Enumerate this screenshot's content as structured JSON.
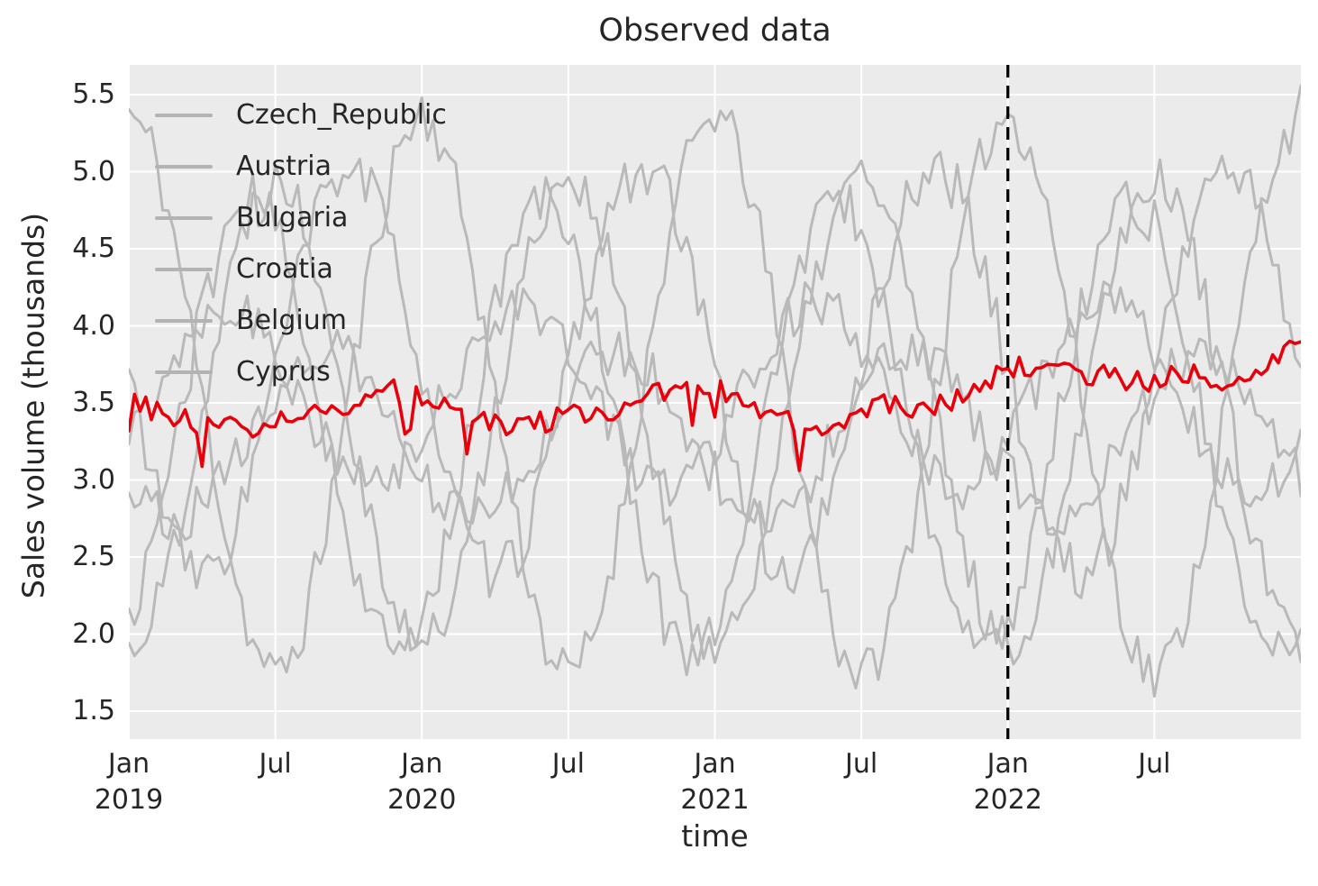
{
  "title": "Observed data",
  "axes": {
    "ylabel": "Sales volume (thousands)",
    "xlabel": "time",
    "y_ticks": [
      {
        "label": "5.5",
        "value": 5.5
      },
      {
        "label": "5.0",
        "value": 5.0
      },
      {
        "label": "4.5",
        "value": 4.5
      },
      {
        "label": "4.0",
        "value": 4.0
      },
      {
        "label": "3.5",
        "value": 3.5
      },
      {
        "label": "3.0",
        "value": 3.0
      },
      {
        "label": "2.5",
        "value": 2.5
      },
      {
        "label": "2.0",
        "value": 2.0
      },
      {
        "label": "1.5",
        "value": 1.5
      }
    ],
    "x_ticks": [
      {
        "month": 0,
        "line1": "Jan",
        "line2": "2019"
      },
      {
        "month": 6,
        "line1": "Jul",
        "line2": ""
      },
      {
        "month": 12,
        "line1": "Jan",
        "line2": "2020"
      },
      {
        "month": 18,
        "line1": "Jul",
        "line2": ""
      },
      {
        "month": 24,
        "line1": "Jan",
        "line2": "2021"
      },
      {
        "month": 30,
        "line1": "Jul",
        "line2": ""
      },
      {
        "month": 36,
        "line1": "Jan",
        "line2": "2022"
      },
      {
        "month": 42,
        "line1": "Jul",
        "line2": ""
      }
    ]
  },
  "legend": {
    "entries": [
      "Czech_Republic",
      "Austria",
      "Bulgaria",
      "Croatia",
      "Belgium",
      "Cyprus"
    ],
    "swatch_color": "#b3b3b3"
  },
  "colors": {
    "plot_background": "#ebebeb",
    "gridline": "#ffffff",
    "gray_series": "#b9b9b9",
    "highlight_series": "#e8000b",
    "split_line": "#000000",
    "text": "#262626"
  },
  "chart_data": {
    "type": "line",
    "title": "Observed data",
    "xlabel": "time",
    "ylabel": "Sales volume (thousands)",
    "x_start": "2019-01",
    "x_end": "2023-01",
    "x_unit": "monthly anchors (weekly noisy data in plot)",
    "ylim": [
      1.33,
      5.69
    ],
    "y_tick_values": [
      5.5,
      5.0,
      4.5,
      4.0,
      3.5,
      3.0,
      2.5,
      2.0,
      1.5
    ],
    "x_tick_labels": [
      "Jan 2019",
      "Jul",
      "Jan 2020",
      "Jul",
      "Jan 2021",
      "Jul",
      "Jan 2022",
      "Jul"
    ],
    "grid": true,
    "legend_position": "upper left",
    "split_line": {
      "x_month": 36,
      "date": "2022-01",
      "style": "dashed",
      "color": "#000000"
    },
    "series": [
      {
        "name": "Czech_Republic",
        "color": "#b9b9b9",
        "width": 3,
        "seed": 11,
        "noise": 0.17,
        "monthly_values": [
          5.4,
          5.15,
          4.48,
          3.55,
          2.63,
          1.95,
          1.7,
          1.95,
          2.63,
          3.55,
          4.48,
          5.15,
          5.4,
          5.15,
          4.48,
          3.55,
          2.63,
          1.95,
          1.7,
          1.95,
          2.63,
          3.55,
          4.48,
          5.15,
          5.4,
          5.15,
          4.48,
          3.55,
          2.63,
          1.95,
          1.7,
          1.95,
          2.63,
          3.55,
          4.48,
          5.15,
          5.4,
          5.15,
          4.48,
          3.55,
          2.63,
          1.95,
          1.7,
          1.95,
          2.63,
          3.55,
          4.48,
          5.15,
          5.4
        ]
      },
      {
        "name": "Austria",
        "color": "#b9b9b9",
        "width": 3,
        "seed": 22,
        "noise": 0.17,
        "monthly_values": [
          1.9,
          2.11,
          2.68,
          3.45,
          4.23,
          4.79,
          5.0,
          4.79,
          4.23,
          3.45,
          2.68,
          2.11,
          1.9,
          2.11,
          2.68,
          3.45,
          4.23,
          4.79,
          5.0,
          4.79,
          4.23,
          3.45,
          2.68,
          2.11,
          1.9,
          2.11,
          2.68,
          3.45,
          4.23,
          4.79,
          5.0,
          4.79,
          4.23,
          3.45,
          2.68,
          2.11,
          1.9,
          2.11,
          2.68,
          3.45,
          4.23,
          4.79,
          5.0,
          4.79,
          4.23,
          3.45,
          2.68,
          2.11,
          1.9
        ]
      },
      {
        "name": "Bulgaria",
        "color": "#b9b9b9",
        "width": 3,
        "seed": 33,
        "noise": 0.17,
        "monthly_values": [
          3.7,
          3.03,
          2.53,
          2.35,
          2.53,
          3.03,
          3.7,
          4.38,
          4.87,
          5.05,
          4.87,
          4.38,
          3.7,
          3.03,
          2.53,
          2.35,
          2.53,
          3.03,
          3.7,
          4.38,
          4.87,
          5.05,
          4.87,
          4.38,
          3.7,
          3.03,
          2.53,
          2.35,
          2.53,
          3.03,
          3.7,
          4.38,
          4.87,
          5.05,
          4.87,
          4.38,
          3.7,
          3.03,
          2.53,
          2.35,
          2.53,
          3.03,
          3.7,
          4.38,
          4.87,
          5.05,
          4.87,
          4.38,
          3.7
        ]
      },
      {
        "name": "Croatia",
        "color": "#b9b9b9",
        "width": 3,
        "seed": 44,
        "noise": 0.17,
        "monthly_values": [
          2.05,
          2.6,
          3.35,
          4.1,
          4.65,
          4.85,
          4.65,
          4.1,
          3.35,
          2.6,
          2.05,
          1.85,
          2.05,
          2.6,
          3.35,
          4.1,
          4.65,
          4.85,
          4.65,
          4.1,
          3.35,
          2.6,
          2.05,
          1.85,
          2.05,
          2.6,
          3.35,
          4.1,
          4.65,
          4.85,
          4.65,
          4.1,
          3.35,
          2.6,
          2.05,
          1.85,
          2.05,
          2.6,
          3.35,
          4.1,
          4.65,
          4.85,
          4.65,
          4.1,
          3.35,
          2.6,
          2.05,
          1.85,
          2.05
        ]
      },
      {
        "name": "Belgium",
        "color": "#b9b9b9",
        "width": 3,
        "seed": 55,
        "noise": 0.16,
        "monthly_values": [
          3.25,
          3.55,
          3.85,
          4.07,
          4.15,
          4.07,
          3.85,
          3.55,
          3.25,
          3.03,
          2.95,
          3.03,
          3.25,
          3.55,
          3.85,
          4.07,
          4.15,
          4.07,
          3.85,
          3.55,
          3.25,
          3.03,
          2.95,
          3.03,
          3.25,
          3.55,
          3.85,
          4.07,
          4.15,
          4.07,
          3.85,
          3.55,
          3.25,
          3.03,
          2.95,
          3.03,
          3.25,
          3.55,
          3.85,
          4.07,
          4.15,
          4.07,
          3.85,
          3.55,
          3.25,
          3.03,
          2.95,
          3.03,
          3.25
        ]
      },
      {
        "name": "Cyprus",
        "color": "#b9b9b9",
        "width": 3,
        "seed": 66,
        "noise": 0.16,
        "monthly_values": [
          3.03,
          2.82,
          2.75,
          2.82,
          3.03,
          3.3,
          3.58,
          3.78,
          3.85,
          3.78,
          3.58,
          3.3,
          3.03,
          2.82,
          2.75,
          2.82,
          3.03,
          3.3,
          3.58,
          3.78,
          3.85,
          3.78,
          3.58,
          3.3,
          3.03,
          2.82,
          2.75,
          2.82,
          3.03,
          3.3,
          3.58,
          3.78,
          3.85,
          3.78,
          3.58,
          3.3,
          3.03,
          2.82,
          2.75,
          2.82,
          3.03,
          3.3,
          3.58,
          3.78,
          3.85,
          3.78,
          3.58,
          3.3,
          3.03
        ]
      },
      {
        "name": "red_highlight_unlabeled",
        "color": "#e8000b",
        "width": 3.6,
        "seed": 77,
        "noise": 0.075,
        "dip_prob": 0.05,
        "dip_size": 0.22,
        "monthly_values": [
          3.55,
          3.45,
          3.4,
          3.35,
          3.38,
          3.35,
          3.38,
          3.42,
          3.45,
          3.5,
          3.55,
          3.58,
          3.55,
          3.48,
          3.42,
          3.38,
          3.35,
          3.38,
          3.42,
          3.4,
          3.45,
          3.52,
          3.58,
          3.62,
          3.6,
          3.52,
          3.45,
          3.38,
          3.3,
          3.38,
          3.45,
          3.5,
          3.42,
          3.48,
          3.52,
          3.58,
          3.75,
          3.7,
          3.72,
          3.65,
          3.68,
          3.62,
          3.65,
          3.7,
          3.66,
          3.6,
          3.7,
          3.82,
          3.92
        ]
      }
    ]
  }
}
